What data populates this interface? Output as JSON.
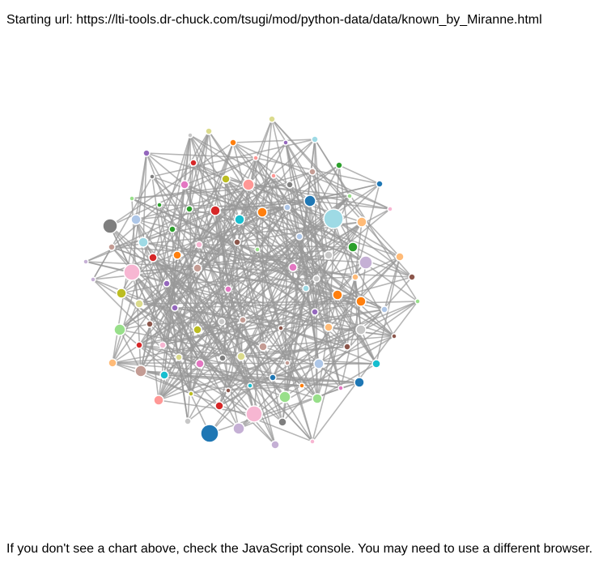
{
  "header": {
    "label": "Starting url:",
    "url": "https://lti-tools.dr-chuck.com/tsugi/mod/python-data/data/known_by_Miranne.html"
  },
  "footer": {
    "message": "If you don't see a chart above, check the JavaScript console. You may need to use a different browser."
  },
  "graph": {
    "edge_color": "#999999",
    "palette": [
      "#1f77b4",
      "#aec7e8",
      "#ff7f0e",
      "#ffbb78",
      "#2ca02c",
      "#98df8a",
      "#d62728",
      "#ff9896",
      "#9467bd",
      "#c5b0d5",
      "#8c564b",
      "#c49c94",
      "#e377c2",
      "#f7b6d2",
      "#7f7f7f",
      "#c7c7c7",
      "#bcbd22",
      "#dbdb8d",
      "#17becf",
      "#9edae5"
    ]
  }
}
